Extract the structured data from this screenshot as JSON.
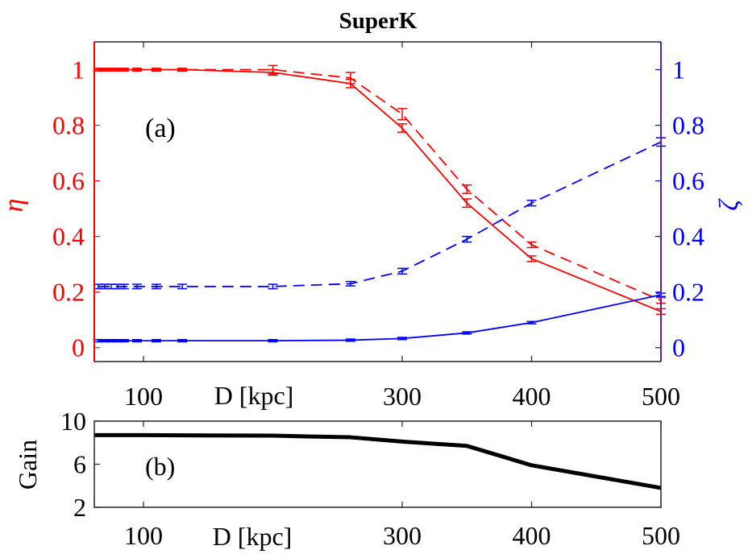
{
  "chart_data": [
    {
      "panel": "(a)",
      "type": "line",
      "title": "SuperK",
      "xlabel": "D [kpc]",
      "ylabel_left": "η",
      "ylabel_right": "ζ",
      "xlim": [
        62,
        500
      ],
      "ylim_left": [
        -0.05,
        1.1
      ],
      "ylim_right": [
        -0.05,
        1.1
      ],
      "xticks": [
        100,
        300,
        400,
        500
      ],
      "yticks_left": [
        0,
        0.2,
        0.4,
        0.6,
        0.8,
        1
      ],
      "yticks_right": [
        0,
        0.2,
        0.4,
        0.6,
        0.8,
        1
      ],
      "colors": {
        "left_axis": "#ff0000",
        "right_axis": "#0000ff",
        "right_spine": "#5a1fa0"
      },
      "series": [
        {
          "axis": "left",
          "color": "#ff0000",
          "style": "solid",
          "x": [
            65,
            70,
            75,
            80,
            85,
            95,
            110,
            130,
            200,
            260,
            300,
            350,
            400,
            500
          ],
          "y": [
            1,
            1,
            1,
            1,
            1,
            1,
            1,
            1,
            0.99,
            0.95,
            0.79,
            0.52,
            0.32,
            0.13
          ],
          "err": [
            0.005,
            0.005,
            0.005,
            0.005,
            0.005,
            0.005,
            0.005,
            0.005,
            0.01,
            0.015,
            0.015,
            0.015,
            0.01,
            0.01
          ]
        },
        {
          "axis": "left",
          "color": "#ff0000",
          "style": "dashed",
          "x": [
            65,
            70,
            75,
            80,
            85,
            95,
            110,
            130,
            200,
            260,
            300,
            350,
            400,
            500
          ],
          "y": [
            1,
            1,
            1,
            1,
            1,
            1,
            1,
            1,
            1,
            0.97,
            0.84,
            0.57,
            0.37,
            0.17
          ],
          "err": [
            0.005,
            0.005,
            0.005,
            0.005,
            0.005,
            0.005,
            0.005,
            0.005,
            0.015,
            0.02,
            0.02,
            0.015,
            0.01,
            0.01
          ]
        },
        {
          "axis": "right",
          "color": "#0000ff",
          "style": "solid",
          "x": [
            65,
            70,
            75,
            80,
            85,
            95,
            110,
            130,
            200,
            260,
            300,
            350,
            400,
            500
          ],
          "y": [
            0.025,
            0.025,
            0.025,
            0.025,
            0.025,
            0.025,
            0.025,
            0.025,
            0.025,
            0.027,
            0.033,
            0.053,
            0.09,
            0.19
          ],
          "err": [
            0.003,
            0.003,
            0.003,
            0.003,
            0.003,
            0.003,
            0.003,
            0.003,
            0.003,
            0.003,
            0.003,
            0.003,
            0.004,
            0.006
          ]
        },
        {
          "axis": "right",
          "color": "#0000ff",
          "style": "dashed",
          "x": [
            65,
            70,
            75,
            80,
            85,
            95,
            110,
            130,
            200,
            260,
            300,
            350,
            400,
            500
          ],
          "y": [
            0.22,
            0.22,
            0.22,
            0.22,
            0.22,
            0.22,
            0.22,
            0.22,
            0.22,
            0.23,
            0.275,
            0.39,
            0.52,
            0.74
          ],
          "err": [
            0.008,
            0.008,
            0.008,
            0.008,
            0.008,
            0.008,
            0.008,
            0.008,
            0.008,
            0.008,
            0.01,
            0.01,
            0.01,
            0.015
          ]
        }
      ]
    },
    {
      "panel": "(b)",
      "type": "line",
      "xlabel": "D [kpc]",
      "ylabel": "Gain",
      "xlim": [
        62,
        500
      ],
      "ylim": [
        2,
        10
      ],
      "xticks": [
        100,
        300,
        400,
        500
      ],
      "yticks": [
        2,
        6,
        10
      ],
      "series": [
        {
          "color": "#000000",
          "x": [
            62,
            100,
            200,
            260,
            300,
            350,
            400,
            500
          ],
          "y": [
            8.7,
            8.7,
            8.65,
            8.5,
            8.1,
            7.7,
            5.9,
            3.8
          ]
        }
      ]
    }
  ]
}
